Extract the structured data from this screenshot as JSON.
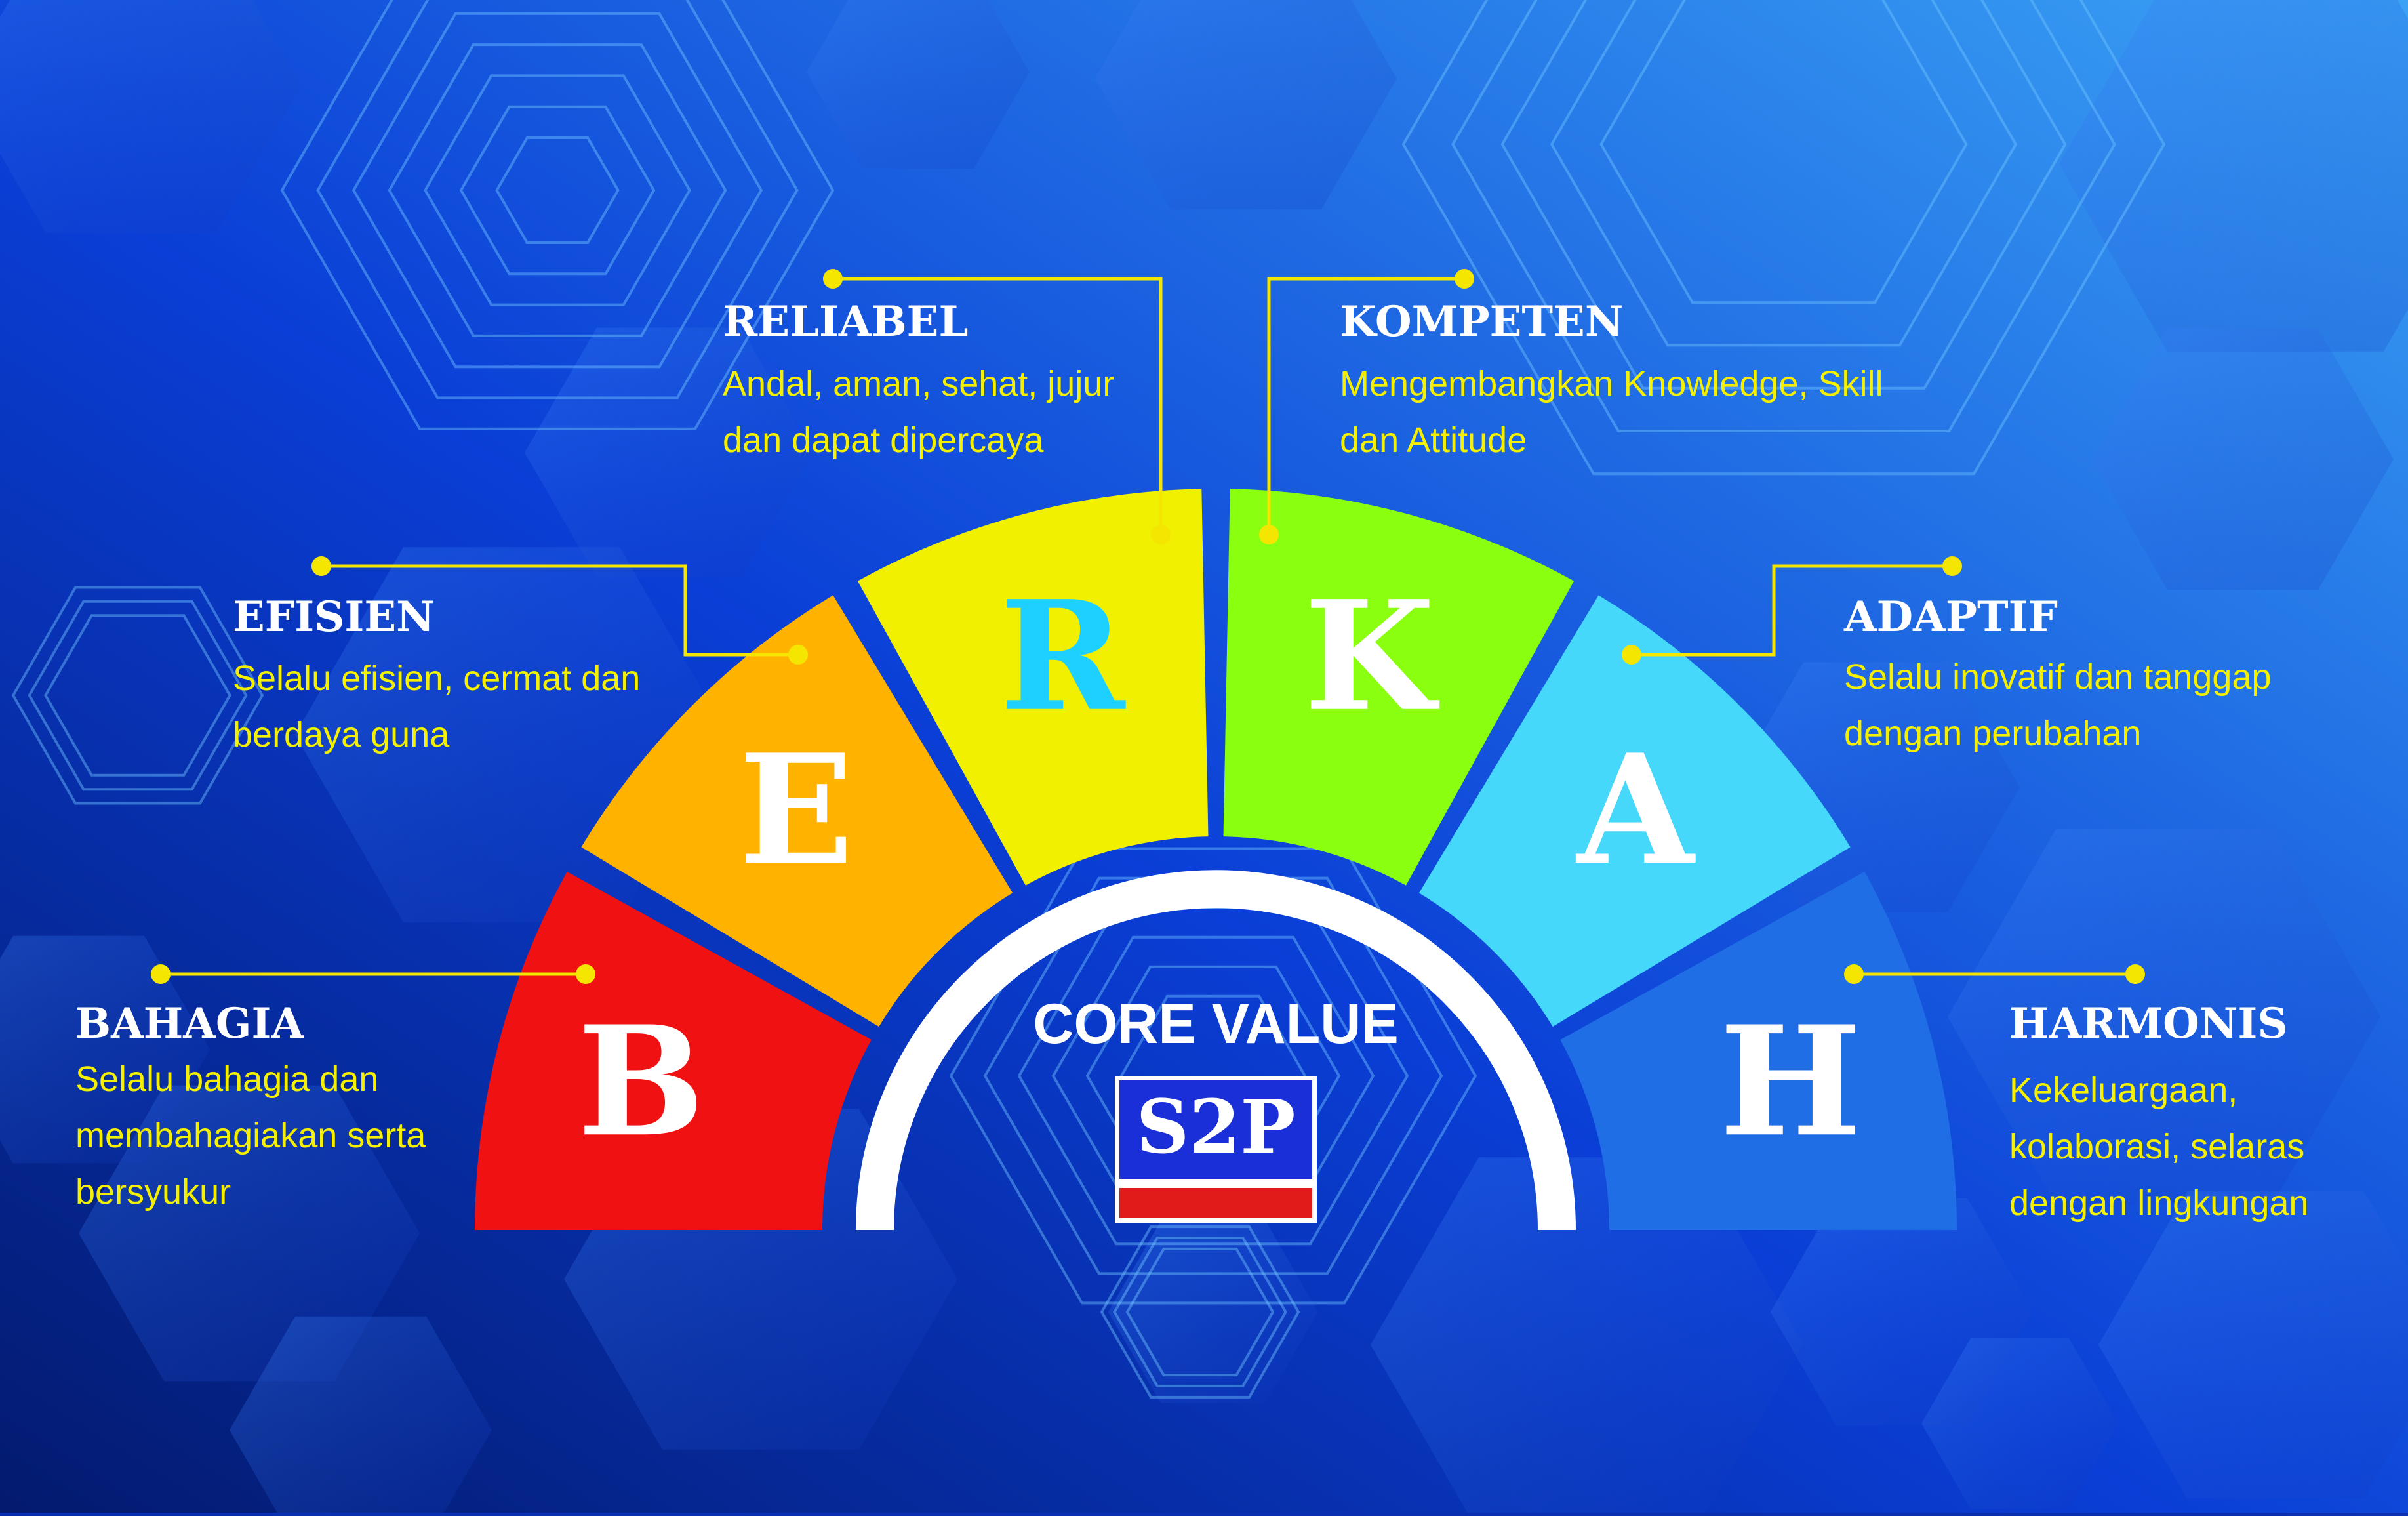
{
  "header": {
    "title": "CORE VALUE"
  },
  "logo": {
    "text": "S2P"
  },
  "colors": {
    "title": "#ffffff",
    "desc": "#f4f000",
    "leader": "#f4e600",
    "arch_inner": "#ffffff",
    "logo_blue": "#1a2fd8",
    "logo_red": "#e11a1a",
    "background_dark": "#07238f",
    "background_light": "#2a8cf0"
  },
  "segments": [
    {
      "letter": "B",
      "title": "BAHAGIA",
      "desc": [
        "Selalu bahagia dan",
        "membahagiakan serta",
        "bersyukur"
      ],
      "color": "#f01212",
      "letter_color": "#ffffff"
    },
    {
      "letter": "E",
      "title": "EFISIEN",
      "desc": [
        "Selalu efisien, cermat dan",
        "berdaya guna"
      ],
      "color": "#ffb300",
      "letter_color": "#ffffff"
    },
    {
      "letter": "R",
      "title": "RELIABEL",
      "desc": [
        "Andal, aman, sehat, jujur",
        "dan dapat dipercaya"
      ],
      "color": "#f0f000",
      "letter_color": "#1ed0ff"
    },
    {
      "letter": "K",
      "title": "KOMPETEN",
      "desc": [
        "Mengembangkan Knowledge, Skill",
        "dan Attitude"
      ],
      "color": "#8bff10",
      "letter_color": "#ffffff"
    },
    {
      "letter": "A",
      "title": "ADAPTIF",
      "desc": [
        "Selalu inovatif dan tanggap",
        "dengan perubahan"
      ],
      "color": "#45d8fa",
      "letter_color": "#ffffff"
    },
    {
      "letter": "H",
      "title": "HARMONIS",
      "desc": [
        "Kekeluargaan,",
        "kolaborasi, selaras",
        "dengan lingkungan"
      ],
      "color": "#1f6ee6",
      "letter_color": "#ffffff"
    }
  ]
}
